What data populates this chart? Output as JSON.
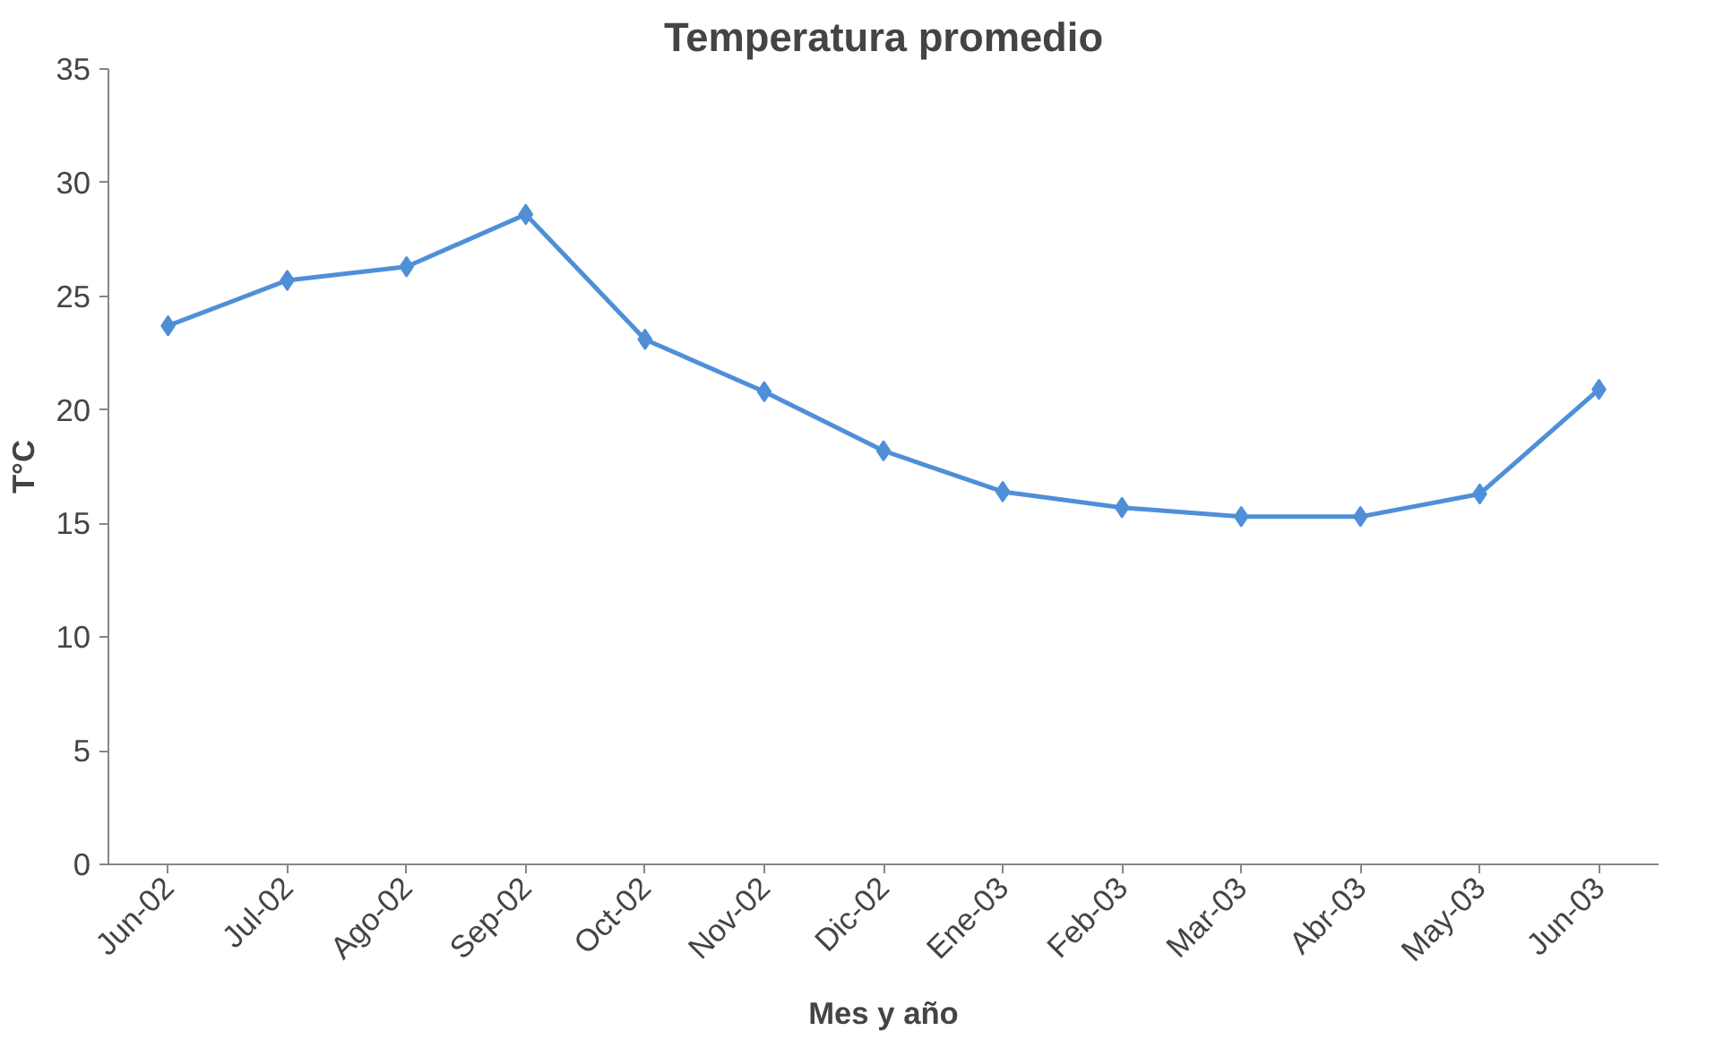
{
  "chart_data": {
    "type": "line",
    "title": "Temperatura promedio",
    "xlabel": "Mes y año",
    "ylabel": "T°C",
    "categories": [
      "Jun-02",
      "Jul-02",
      "Ago-02",
      "Sep-02",
      "Oct-02",
      "Nov-02",
      "Dic-02",
      "Ene-03",
      "Feb-03",
      "Mar-03",
      "Abr-03",
      "May-03",
      "Jun-03"
    ],
    "series": [
      {
        "color": "#4f8fd8",
        "values": [
          23.7,
          25.7,
          26.3,
          28.6,
          23.1,
          20.8,
          18.2,
          16.4,
          15.7,
          15.3,
          15.3,
          16.3,
          20.9
        ]
      }
    ],
    "ylim": [
      0,
      35
    ],
    "yticks": [
      0,
      5,
      10,
      15,
      20,
      25,
      30,
      35
    ],
    "grid": false,
    "marker": "diamond",
    "line_style": "solid"
  }
}
